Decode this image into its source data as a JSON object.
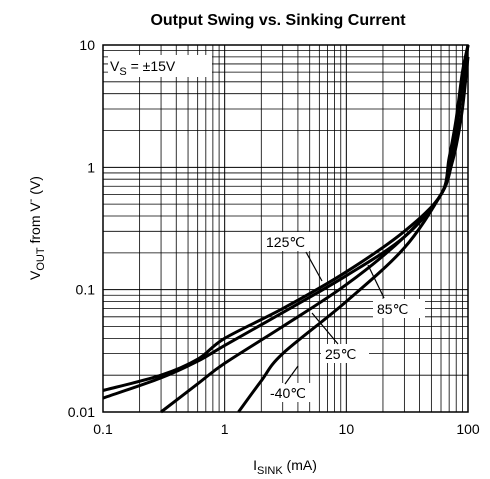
{
  "chart_data": {
    "type": "line",
    "title": "Output Swing vs. Sinking Current",
    "xlabel_main": "I",
    "xlabel_sub": "SINK",
    "xlabel_unit": " (mA)",
    "ylabel_main": "V",
    "ylabel_sub": "OUT",
    "ylabel_rest": " from V",
    "ylabel_sup": "-",
    "ylabel_unit": " (V)",
    "xscale": "log",
    "yscale": "log",
    "xlim": [
      0.1,
      100
    ],
    "ylim": [
      0.01,
      10
    ],
    "grid": true,
    "xticks": [
      "0.1",
      "1",
      "10",
      "100"
    ],
    "yticks": [
      "0.01",
      "0.1",
      "1",
      "10"
    ],
    "annotation": {
      "pre": "V",
      "sub": "S",
      "post": " = ±15V"
    },
    "series": [
      {
        "name": "125℃",
        "points": [
          [
            0.1,
            0.015
          ],
          [
            0.3,
            0.02
          ],
          [
            0.6,
            0.027
          ],
          [
            1,
            0.04
          ],
          [
            3,
            0.07
          ],
          [
            10,
            0.14
          ],
          [
            30,
            0.3
          ],
          [
            60,
            0.6
          ],
          [
            70,
            1.2
          ],
          [
            80,
            2.5
          ],
          [
            90,
            6
          ],
          [
            100,
            10
          ]
        ]
      },
      {
        "name": "85℃",
        "points": [
          [
            0.1,
            0.013
          ],
          [
            0.3,
            0.019
          ],
          [
            0.6,
            0.026
          ],
          [
            1,
            0.035
          ],
          [
            3,
            0.065
          ],
          [
            10,
            0.13
          ],
          [
            30,
            0.27
          ],
          [
            60,
            0.6
          ],
          [
            70,
            1.1
          ],
          [
            80,
            2.2
          ],
          [
            90,
            5
          ],
          [
            100,
            10
          ]
        ]
      },
      {
        "name": "25℃",
        "points": [
          [
            0.3,
            0.01
          ],
          [
            0.6,
            0.017
          ],
          [
            1,
            0.025
          ],
          [
            3,
            0.05
          ],
          [
            10,
            0.11
          ],
          [
            30,
            0.27
          ],
          [
            60,
            0.6
          ],
          [
            75,
            1.2
          ],
          [
            85,
            3
          ],
          [
            95,
            7
          ],
          [
            100,
            10
          ]
        ]
      },
      {
        "name": "-40℃",
        "points": [
          [
            1.3,
            0.01
          ],
          [
            2,
            0.018
          ],
          [
            3,
            0.03
          ],
          [
            10,
            0.08
          ],
          [
            30,
            0.22
          ],
          [
            60,
            0.6
          ],
          [
            70,
            0.9
          ],
          [
            80,
            1.5
          ],
          [
            90,
            3
          ],
          [
            100,
            8
          ]
        ]
      }
    ]
  }
}
